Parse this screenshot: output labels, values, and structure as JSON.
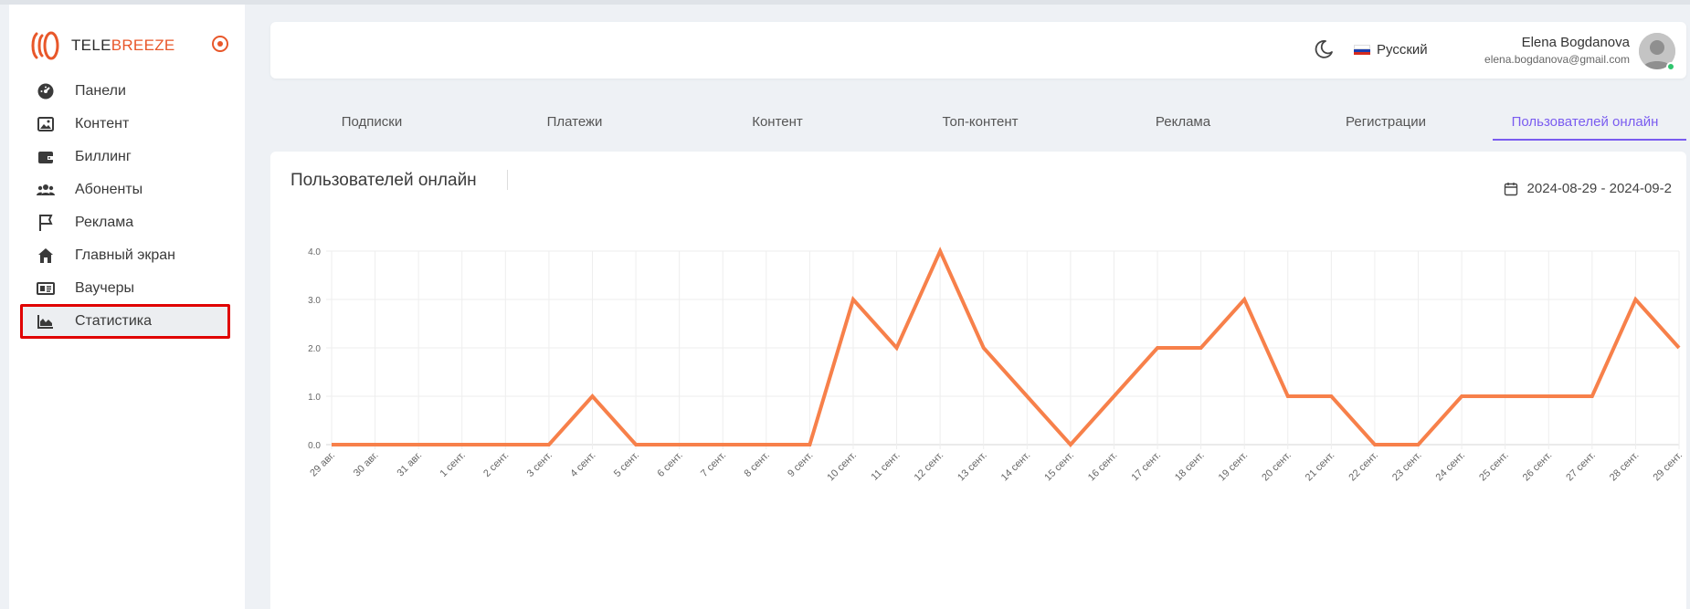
{
  "brand": {
    "logo_part1": "TELE",
    "logo_part2": "BREEZE"
  },
  "sidebar": {
    "items": [
      {
        "label": "Панели",
        "icon": "dashboard-icon"
      },
      {
        "label": "Контент",
        "icon": "image-icon"
      },
      {
        "label": "Биллинг",
        "icon": "wallet-icon"
      },
      {
        "label": "Абоненты",
        "icon": "users-icon"
      },
      {
        "label": "Реклама",
        "icon": "flag-icon"
      },
      {
        "label": "Главный экран",
        "icon": "home-icon"
      },
      {
        "label": "Ваучеры",
        "icon": "voucher-icon"
      },
      {
        "label": "Статистика",
        "icon": "chart-area-icon",
        "active": true
      }
    ]
  },
  "header": {
    "language": "Русский",
    "user_name": "Elena Bogdanova",
    "user_email": "elena.bogdanova@gmail.com"
  },
  "tabs": [
    {
      "label": "Подписки"
    },
    {
      "label": "Платежи"
    },
    {
      "label": "Контент"
    },
    {
      "label": "Топ-контент"
    },
    {
      "label": "Реклама"
    },
    {
      "label": "Регистрации"
    },
    {
      "label": "Пользователей онлайн",
      "active": true
    }
  ],
  "chart_panel": {
    "title": "Пользователей онлайн",
    "date_range": "2024-08-29 - 2024-09-2"
  },
  "colors": {
    "accent": "#e8572a",
    "line": "#f7804a",
    "active_tab": "#7a5cf0",
    "highlight": "#e00000"
  },
  "chart_data": {
    "type": "line",
    "title": "Пользователей онлайн",
    "xlabel": "",
    "ylabel": "",
    "ylim": [
      0,
      4
    ],
    "y_ticks": [
      "0.0",
      "1.0",
      "2.0",
      "3.0",
      "4.0"
    ],
    "grid": true,
    "categories": [
      "29 авг.",
      "30 авг.",
      "31 авг.",
      "1 сент.",
      "2 сент.",
      "3 сент.",
      "4 сент.",
      "5 сент.",
      "6 сент.",
      "7 сент.",
      "8 сент.",
      "9 сент.",
      "10 сент.",
      "11 сент.",
      "12 сент.",
      "13 сент.",
      "14 сент.",
      "15 сент.",
      "16 сент.",
      "17 сент.",
      "18 сент.",
      "19 сент.",
      "20 сент.",
      "21 сент.",
      "22 сент.",
      "23 сент.",
      "24 сент.",
      "25 сент.",
      "26 сент.",
      "27 сент.",
      "28 сент.",
      "29 сент."
    ],
    "series": [
      {
        "values": [
          0,
          0,
          0,
          0,
          0,
          0,
          1,
          0,
          0,
          0,
          0,
          0,
          3,
          2,
          4,
          2,
          1,
          0,
          1,
          2,
          2,
          3,
          1,
          1,
          0,
          0,
          1,
          1,
          1,
          1,
          3,
          2
        ]
      }
    ]
  }
}
